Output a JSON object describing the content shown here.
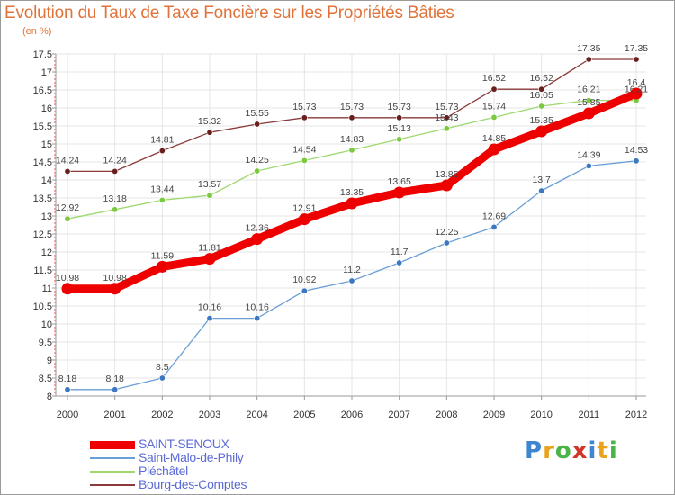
{
  "title": "Evolution du Taux de Taxe Foncière sur les Propriétés Bâties",
  "unit_label": "(en %)",
  "brand": {
    "letters": [
      "P",
      "r",
      "o",
      "x",
      "i",
      "t",
      "i"
    ],
    "colors": [
      "#3f86d0",
      "#e8a21c",
      "#4bb348",
      "#d2352c",
      "#3f86d0",
      "#e8a21c",
      "#4bb348"
    ]
  },
  "chart_data": {
    "type": "line",
    "title": "Evolution du Taux de Taxe Foncière sur les Propriétés Bâties",
    "ylabel": "(en %)",
    "xlabel": "",
    "ylim": [
      8,
      17.5
    ],
    "y_ticks": [
      "8",
      "8.5",
      "9",
      "9.5",
      "10",
      "10.5",
      "11",
      "11.5",
      "12",
      "12.5",
      "13",
      "13.5",
      "14",
      "14.5",
      "15",
      "15.5",
      "16",
      "16.5",
      "17",
      "17.5"
    ],
    "categories": [
      "2000",
      "2001",
      "2002",
      "2003",
      "2004",
      "2005",
      "2006",
      "2007",
      "2008",
      "2009",
      "2010",
      "2011",
      "2012"
    ],
    "series": [
      {
        "name": "SAINT-SENOUX",
        "color": "#ee0000",
        "emphasis": true,
        "values": [
          10.98,
          10.98,
          11.59,
          11.81,
          12.36,
          12.91,
          13.35,
          13.65,
          13.85,
          14.85,
          15.35,
          15.85,
          16.4
        ],
        "labels": [
          "10.98",
          "10.98",
          "11.59",
          "11.81",
          "12.36",
          "12.91",
          "13.35",
          "13.65",
          "13.85",
          "14.85",
          "15.35",
          "15.85",
          "16.4"
        ]
      },
      {
        "name": "Saint-Malo-de-Phily",
        "color": "#6a9ed6",
        "marker": "#3c78c0",
        "values": [
          8.18,
          8.18,
          8.5,
          10.16,
          10.16,
          10.92,
          11.2,
          11.7,
          12.25,
          12.69,
          13.7,
          14.39,
          14.53
        ],
        "labels": [
          "8.18",
          "8.18",
          "8.5",
          "10.16",
          "10.16",
          "10.92",
          "11.2",
          "11.7",
          "12.25",
          "12.69",
          "13.7",
          "14.39",
          "14.53"
        ]
      },
      {
        "name": "Pléchâtel",
        "color": "#9ed86e",
        "marker": "#7cc840",
        "values": [
          12.92,
          13.18,
          13.44,
          13.57,
          14.25,
          14.54,
          14.83,
          15.13,
          15.43,
          15.74,
          16.05,
          16.21,
          16.21
        ],
        "labels": [
          "12.92",
          "13.18",
          "13.44",
          "13.57",
          "14.25",
          "14.54",
          "14.83",
          "15.13",
          "15.43",
          "15.74",
          "16.05",
          "16.21",
          "16.21"
        ]
      },
      {
        "name": "Bourg-des-Comptes",
        "color": "#8a3a3a",
        "marker": "#6a1f1f",
        "values": [
          14.24,
          14.24,
          14.81,
          15.32,
          15.55,
          15.73,
          15.73,
          15.73,
          15.73,
          16.52,
          16.52,
          17.35,
          17.35
        ],
        "labels": [
          "14.24",
          "14.24",
          "14.81",
          "15.32",
          "15.55",
          "15.73",
          "15.73",
          "15.73",
          "15.73",
          "16.52",
          "16.52",
          "17.35",
          "17.35"
        ]
      }
    ]
  }
}
